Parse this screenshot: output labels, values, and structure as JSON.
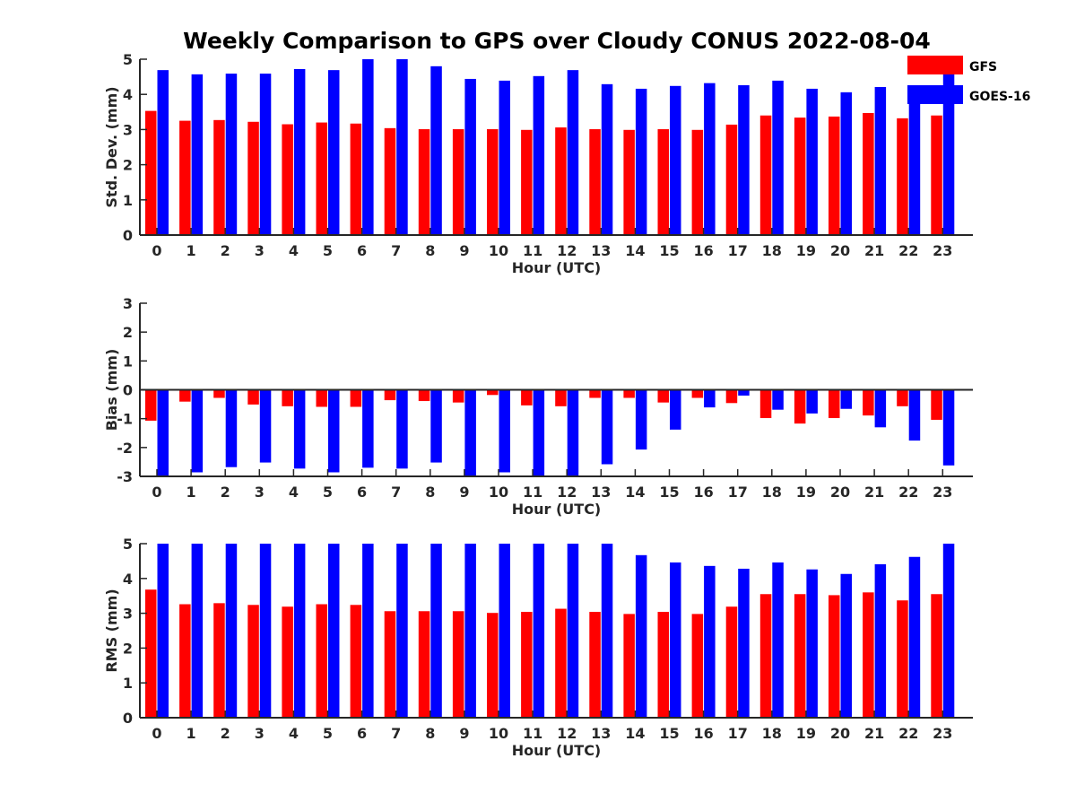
{
  "title": "Weekly Comparison to GPS over Cloudy CONUS 2022-08-04",
  "legend": {
    "items": [
      {
        "name": "GFS",
        "color": "#ff0000"
      },
      {
        "name": "GOES-16",
        "color": "#0000ff"
      }
    ]
  },
  "chart_data": [
    {
      "type": "bar",
      "xlabel": "Hour (UTC)",
      "ylabel": "Std. Dev. (mm)",
      "ylim": [
        0,
        5
      ],
      "yticks": [
        0,
        1,
        2,
        3,
        4,
        5
      ],
      "categories": [
        "0",
        "1",
        "2",
        "3",
        "4",
        "5",
        "6",
        "7",
        "8",
        "9",
        "10",
        "11",
        "12",
        "13",
        "14",
        "15",
        "16",
        "17",
        "18",
        "19",
        "20",
        "21",
        "22",
        "23"
      ],
      "series": [
        {
          "name": "GFS",
          "color": "#ff0000",
          "values": [
            3.53,
            3.25,
            3.27,
            3.22,
            3.15,
            3.2,
            3.17,
            3.04,
            3.01,
            3.01,
            3.01,
            2.99,
            3.06,
            3.01,
            2.99,
            3.01,
            2.99,
            3.14,
            3.4,
            3.34,
            3.37,
            3.47,
            3.32,
            3.4
          ]
        },
        {
          "name": "GOES-16",
          "color": "#0000ff",
          "values": [
            4.69,
            4.57,
            4.59,
            4.59,
            4.72,
            4.69,
            5.0,
            5.0,
            4.8,
            4.44,
            4.39,
            4.52,
            4.69,
            4.29,
            4.16,
            4.24,
            4.32,
            4.26,
            4.39,
            4.16,
            4.06,
            4.21,
            4.21,
            4.62
          ]
        }
      ]
    },
    {
      "type": "bar",
      "xlabel": "Hour (UTC)",
      "ylabel": "Bias (mm)",
      "ylim": [
        -3,
        3
      ],
      "yticks": [
        -3,
        -2,
        -1,
        0,
        1,
        2,
        3
      ],
      "categories": [
        "0",
        "1",
        "2",
        "3",
        "4",
        "5",
        "6",
        "7",
        "8",
        "9",
        "10",
        "11",
        "12",
        "13",
        "14",
        "15",
        "16",
        "17",
        "18",
        "19",
        "20",
        "21",
        "22",
        "23"
      ],
      "series": [
        {
          "name": "GFS",
          "color": "#ff0000",
          "values": [
            -1.07,
            -0.41,
            -0.28,
            -0.51,
            -0.57,
            -0.59,
            -0.59,
            -0.36,
            -0.39,
            -0.44,
            -0.18,
            -0.54,
            -0.57,
            -0.28,
            -0.28,
            -0.44,
            -0.28,
            -0.46,
            -0.98,
            -1.17,
            -0.98,
            -0.89,
            -0.57,
            -1.04
          ]
        },
        {
          "name": "GOES-16",
          "color": "#0000ff",
          "values": [
            -3.0,
            -2.86,
            -2.68,
            -2.52,
            -2.73,
            -2.86,
            -2.7,
            -2.73,
            -2.52,
            -3.0,
            -2.86,
            -3.0,
            -3.0,
            -2.58,
            -2.07,
            -1.38,
            -0.61,
            -0.2,
            -0.69,
            -0.82,
            -0.66,
            -1.3,
            -1.76,
            -2.62
          ]
        }
      ]
    },
    {
      "type": "bar",
      "xlabel": "Hour (UTC)",
      "ylabel": "RMS (mm)",
      "ylim": [
        0,
        5
      ],
      "yticks": [
        0,
        1,
        2,
        3,
        4,
        5
      ],
      "categories": [
        "0",
        "1",
        "2",
        "3",
        "4",
        "5",
        "6",
        "7",
        "8",
        "9",
        "10",
        "11",
        "12",
        "13",
        "14",
        "15",
        "16",
        "17",
        "18",
        "19",
        "20",
        "21",
        "22",
        "23"
      ],
      "series": [
        {
          "name": "GFS",
          "color": "#ff0000",
          "values": [
            3.68,
            3.26,
            3.29,
            3.24,
            3.19,
            3.26,
            3.24,
            3.06,
            3.06,
            3.06,
            3.01,
            3.04,
            3.13,
            3.04,
            2.98,
            3.04,
            2.98,
            3.19,
            3.55,
            3.55,
            3.52,
            3.6,
            3.37,
            3.55
          ]
        },
        {
          "name": "GOES-16",
          "color": "#0000ff",
          "values": [
            5.0,
            5.0,
            5.0,
            5.0,
            5.0,
            5.0,
            5.0,
            5.0,
            5.0,
            5.0,
            5.0,
            5.0,
            5.0,
            5.0,
            4.67,
            4.46,
            4.36,
            4.28,
            4.46,
            4.26,
            4.13,
            4.41,
            4.62,
            5.0
          ]
        }
      ]
    }
  ]
}
